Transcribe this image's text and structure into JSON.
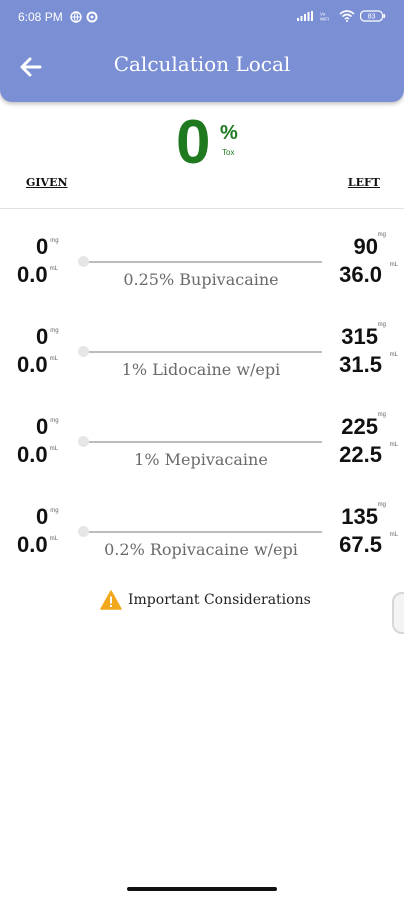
{
  "status_bar": {
    "time": "6:08 PM",
    "battery": "83"
  },
  "app_bar": {
    "title": "Calculation Local"
  },
  "toxicity": {
    "value": "0",
    "percent_symbol": "%",
    "label": "Tox"
  },
  "columns": {
    "given": "GIVEN",
    "left": "LEFT"
  },
  "units": {
    "mg": "mg",
    "ml": "mL"
  },
  "drugs": [
    {
      "name": "0.25% Bupivacaine",
      "given_mg": "0",
      "given_ml": "0.0",
      "left_mg": "90",
      "left_ml": "36.0",
      "slider_fraction": 0
    },
    {
      "name": "1% Lidocaine w/epi",
      "given_mg": "0",
      "given_ml": "0.0",
      "left_mg": "315",
      "left_ml": "31.5",
      "slider_fraction": 0
    },
    {
      "name": "1% Mepivacaine",
      "given_mg": "0",
      "given_ml": "0.0",
      "left_mg": "225",
      "left_ml": "22.5",
      "slider_fraction": 0
    },
    {
      "name": "0.2% Ropivacaine w/epi",
      "given_mg": "0",
      "given_ml": "0.0",
      "left_mg": "135",
      "left_ml": "67.5",
      "slider_fraction": 0
    }
  ],
  "considerations": {
    "label": "Important Considerations"
  },
  "colors": {
    "app_bar": "#7b8fd4",
    "tox_green": "#1f7a1f",
    "warning": "#f2a81d"
  },
  "icons": {
    "back": "arrow-left-icon",
    "warning": "warning-triangle-icon"
  }
}
